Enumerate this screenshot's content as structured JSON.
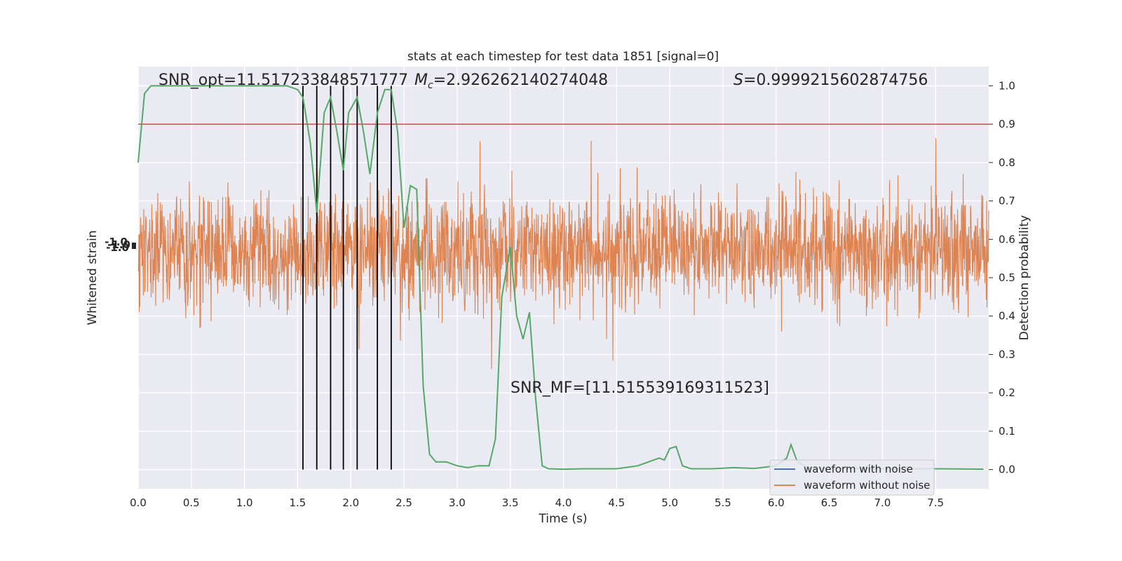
{
  "chart_data": {
    "type": "line",
    "title": "stats at each timestep for test data 1851 [signal=0]",
    "xlabel": "Time (s)",
    "ylabel_left": "Whitened strain",
    "ylabel_right": "Detection probability",
    "xlim": [
      0.0,
      8.0
    ],
    "ylim_right": [
      -0.05,
      1.05
    ],
    "x_ticks": [
      "0.0",
      "0.5",
      "1.0",
      "1.5",
      "2.0",
      "2.5",
      "3.0",
      "3.5",
      "4.0",
      "4.5",
      "5.0",
      "5.5",
      "6.0",
      "6.5",
      "7.0",
      "7.5"
    ],
    "y_ticks_right": [
      "0.0",
      "0.1",
      "0.2",
      "0.3",
      "0.4",
      "0.5",
      "0.6",
      "0.7",
      "0.8",
      "0.9",
      "1.0"
    ],
    "grid": true,
    "legend_position": "lower-right",
    "annotations": {
      "snr_opt": "SNR_opt=11.517233848571777",
      "mc_symbol": "M",
      "mc_subscript": "c",
      "mc_value": "=2.926262140274048",
      "s_symbol": "S",
      "s_value": "=0.9999215602874756",
      "snr_mf": "SNR_MF=[11.515539169311523]"
    },
    "threshold": 0.9,
    "vertical_markers_x": [
      1.55,
      1.68,
      1.81,
      1.93,
      2.06,
      2.25,
      2.38
    ],
    "series": [
      {
        "name": "waveform with noise",
        "color": "#4c72b0",
        "role": "legend-only"
      },
      {
        "name": "waveform without noise",
        "color": "#dd8452",
        "role": "strain",
        "amplitude_envelope": [
          0.3,
          0.8
        ]
      },
      {
        "name": "",
        "color": "#55a868",
        "role": "probability",
        "x": [
          0.0,
          0.06,
          0.12,
          0.5,
          1.0,
          1.2,
          1.4,
          1.5,
          1.55,
          1.62,
          1.68,
          1.75,
          1.81,
          1.87,
          1.93,
          1.98,
          2.06,
          2.12,
          2.18,
          2.25,
          2.32,
          2.38,
          2.44,
          2.5,
          2.56,
          2.62,
          2.68,
          2.74,
          2.8,
          2.9,
          3.0,
          3.1,
          3.2,
          3.3,
          3.36,
          3.42,
          3.5,
          3.56,
          3.62,
          3.68,
          3.74,
          3.8,
          3.86,
          4.0,
          4.2,
          4.5,
          4.7,
          4.8,
          4.9,
          4.95,
          5.0,
          5.06,
          5.12,
          5.2,
          5.4,
          5.6,
          5.8,
          6.0,
          6.1,
          6.14,
          6.2,
          6.3,
          6.5,
          7.0,
          7.5,
          7.95
        ],
        "y": [
          0.8,
          0.98,
          1.0,
          1.0,
          1.0,
          1.0,
          1.0,
          0.99,
          0.97,
          0.85,
          0.67,
          0.93,
          0.97,
          0.88,
          0.78,
          0.93,
          0.97,
          0.88,
          0.77,
          0.93,
          0.99,
          0.99,
          0.88,
          0.63,
          0.74,
          0.73,
          0.22,
          0.04,
          0.02,
          0.02,
          0.01,
          0.005,
          0.01,
          0.01,
          0.08,
          0.45,
          0.58,
          0.4,
          0.34,
          0.41,
          0.18,
          0.01,
          0.002,
          0.001,
          0.002,
          0.002,
          0.01,
          0.02,
          0.03,
          0.025,
          0.055,
          0.06,
          0.01,
          0.002,
          0.002,
          0.005,
          0.003,
          0.01,
          0.03,
          0.065,
          0.02,
          0.005,
          0.003,
          0.002,
          0.002,
          0.001
        ]
      }
    ]
  },
  "left_axis_tick_glyph": "-1.0"
}
